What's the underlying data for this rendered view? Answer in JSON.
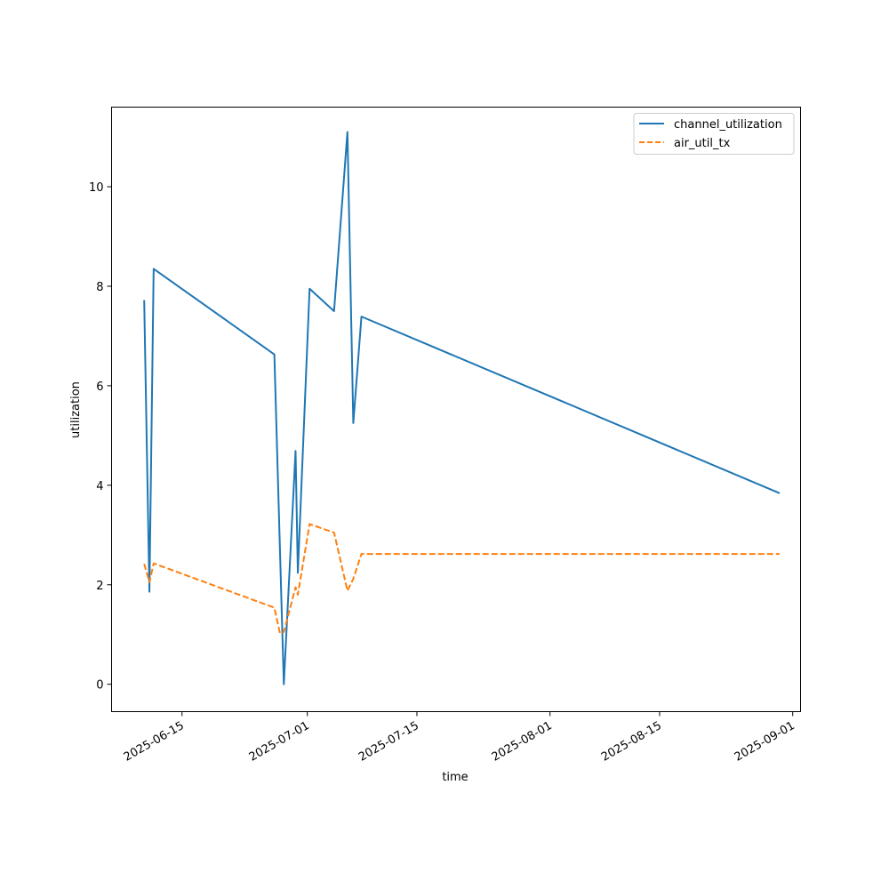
{
  "chart_data": {
    "type": "line",
    "xlabel": "time",
    "ylabel": "utilization",
    "x_axis_type": "date",
    "xlim": [
      "2025-06-06",
      "2025-09-02"
    ],
    "ylim": [
      -0.55,
      11.6
    ],
    "x_ticks": [
      "2025-06-15",
      "2025-07-01",
      "2025-07-15",
      "2025-08-01",
      "2025-08-15",
      "2025-09-01"
    ],
    "y_ticks": [
      0,
      2,
      4,
      6,
      8,
      10
    ],
    "grid": false,
    "legend_position": "top-right",
    "series": [
      {
        "name": "channel_utilization",
        "color": "#1f77b4",
        "dash": "solid",
        "points": [
          [
            "2025-06-10T04:00",
            7.72
          ],
          [
            "2025-06-10T20:00",
            1.86
          ],
          [
            "2025-06-11T09:00",
            8.35
          ],
          [
            "2025-06-26T19:00",
            6.63
          ],
          [
            "2025-06-28T00:00",
            0.0
          ],
          [
            "2025-06-29T12:00",
            4.69
          ],
          [
            "2025-06-29T19:00",
            2.24
          ],
          [
            "2025-07-01T07:00",
            7.95
          ],
          [
            "2025-07-04T10:00",
            7.5
          ],
          [
            "2025-07-06T03:00",
            11.1
          ],
          [
            "2025-07-06T21:00",
            5.25
          ],
          [
            "2025-07-07T22:00",
            7.39
          ],
          [
            "2025-08-30T08:00",
            3.84
          ]
        ]
      },
      {
        "name": "air_util_tx",
        "color": "#ff7f0e",
        "dash": "dashed",
        "points": [
          [
            "2025-06-10T04:00",
            2.42
          ],
          [
            "2025-06-10T20:00",
            2.05
          ],
          [
            "2025-06-11T09:00",
            2.43
          ],
          [
            "2025-06-26T19:00",
            1.54
          ],
          [
            "2025-06-27T12:00",
            1.03
          ],
          [
            "2025-06-28T00:00",
            1.05
          ],
          [
            "2025-06-29T12:00",
            1.95
          ],
          [
            "2025-06-29T19:00",
            1.8
          ],
          [
            "2025-07-01T07:00",
            3.22
          ],
          [
            "2025-07-04T10:00",
            3.05
          ],
          [
            "2025-07-06T03:00",
            1.88
          ],
          [
            "2025-07-06T21:00",
            2.12
          ],
          [
            "2025-07-07T22:00",
            2.62
          ],
          [
            "2025-08-30T08:00",
            2.62
          ]
        ]
      }
    ]
  }
}
